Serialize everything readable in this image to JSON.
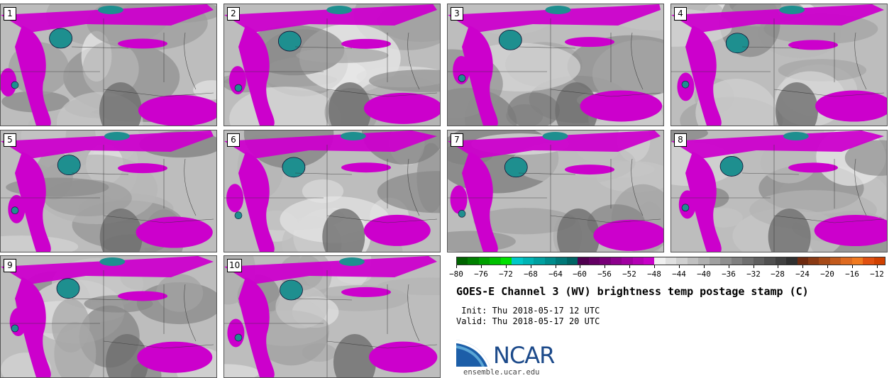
{
  "panels": [
    {
      "label": "1"
    },
    {
      "label": "2"
    },
    {
      "label": "3"
    },
    {
      "label": "4"
    },
    {
      "label": "5"
    },
    {
      "label": "6"
    },
    {
      "label": "7"
    },
    {
      "label": "8"
    },
    {
      "label": "9"
    },
    {
      "label": "10"
    }
  ],
  "colorbar": {
    "ticks": [
      "−80",
      "−76",
      "−72",
      "−68",
      "−64",
      "−60",
      "−56",
      "−52",
      "−48",
      "−44",
      "−40",
      "−36",
      "−32",
      "−28",
      "−24",
      "−20",
      "−16",
      "−12"
    ],
    "colors": [
      "#006400",
      "#008000",
      "#00a000",
      "#00c000",
      "#00e000",
      "#00c8c8",
      "#00b4b4",
      "#00a0a0",
      "#008c8c",
      "#007878",
      "#006464",
      "#500050",
      "#640064",
      "#780078",
      "#8c008c",
      "#a000a0",
      "#b400b4",
      "#c800c8",
      "#f0f0f0",
      "#e0e0e0",
      "#d0d0d0",
      "#c0c0c0",
      "#b0b0b0",
      "#a0a0a0",
      "#909090",
      "#808080",
      "#707070",
      "#606060",
      "#505050",
      "#404040",
      "#303030",
      "#6e2a10",
      "#8a3a14",
      "#a64a18",
      "#c25a1c",
      "#de6a20",
      "#f07a20",
      "#e05010",
      "#d04000"
    ]
  },
  "title": "GOES-E Channel 3 (WV) brightness temp postage stamp (C)",
  "init": " Init: Thu 2018-05-17 12 UTC",
  "valid": "Valid: Thu 2018-05-17 20 UTC",
  "logo": {
    "name": "NCAR",
    "site": "ensemble.ucar.edu"
  },
  "palette": {
    "magenta": "#cc00cc",
    "teal": "#1e8f8f",
    "gray_light": "#d8d8d8",
    "gray_dark": "#707070"
  }
}
